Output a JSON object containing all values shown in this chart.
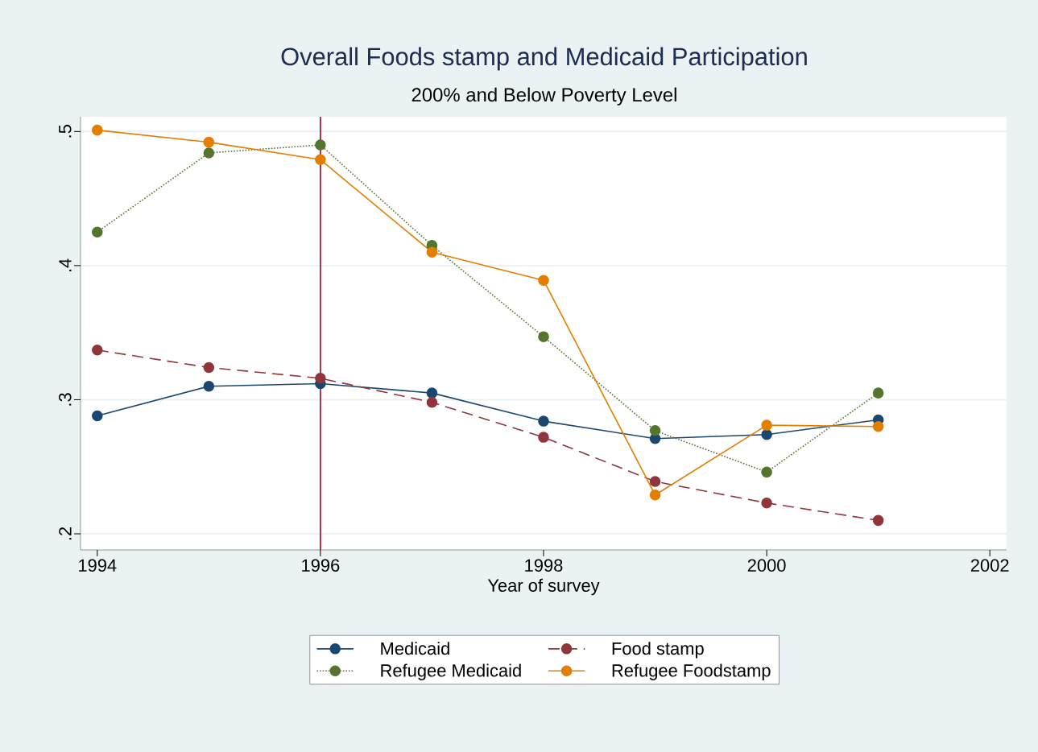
{
  "chart_data": {
    "type": "line",
    "title": "Overall Foods stamp and Medicaid Participation",
    "subtitle": "200% and Below Poverty Level",
    "xlabel": "Year of survey",
    "x": [
      1994,
      1995,
      1996,
      1997,
      1998,
      1999,
      2000,
      2001
    ],
    "series": [
      {
        "name": "Medicaid",
        "color": "#1a476f",
        "line_style": "solid",
        "values": [
          0.288,
          0.31,
          0.312,
          0.305,
          0.284,
          0.271,
          0.274,
          0.285
        ]
      },
      {
        "name": "Food stamp",
        "color": "#90353b",
        "line_style": "dashed",
        "values": [
          0.337,
          0.324,
          0.316,
          0.298,
          0.272,
          0.239,
          0.223,
          0.21
        ]
      },
      {
        "name": "Refugee Medicaid",
        "color": "#55752f",
        "line_style": "dotted",
        "values": [
          0.425,
          0.484,
          0.49,
          0.415,
          0.347,
          0.277,
          0.246,
          0.305
        ]
      },
      {
        "name": "Refugee Foodstamp",
        "color": "#e37e00",
        "line_style": "solid",
        "values": [
          0.501,
          0.492,
          0.479,
          0.41,
          0.389,
          0.229,
          0.281,
          0.28
        ]
      }
    ],
    "xlim": [
      1993.85,
      2002.15
    ],
    "ylim": [
      0.188,
      0.511
    ],
    "xticks": [
      1994,
      1996,
      1998,
      2000,
      2002
    ],
    "yticks": [
      {
        "value": 0.2,
        "label": ".2"
      },
      {
        "value": 0.3,
        "label": ".3"
      },
      {
        "value": 0.4,
        "label": ".4"
      },
      {
        "value": 0.5,
        "label": ".5"
      }
    ],
    "ref_lines": [
      {
        "axis": "x",
        "value": 1996,
        "color": "#b0163a"
      }
    ],
    "grid": "y",
    "legend": "bottom",
    "marker": "circle"
  }
}
